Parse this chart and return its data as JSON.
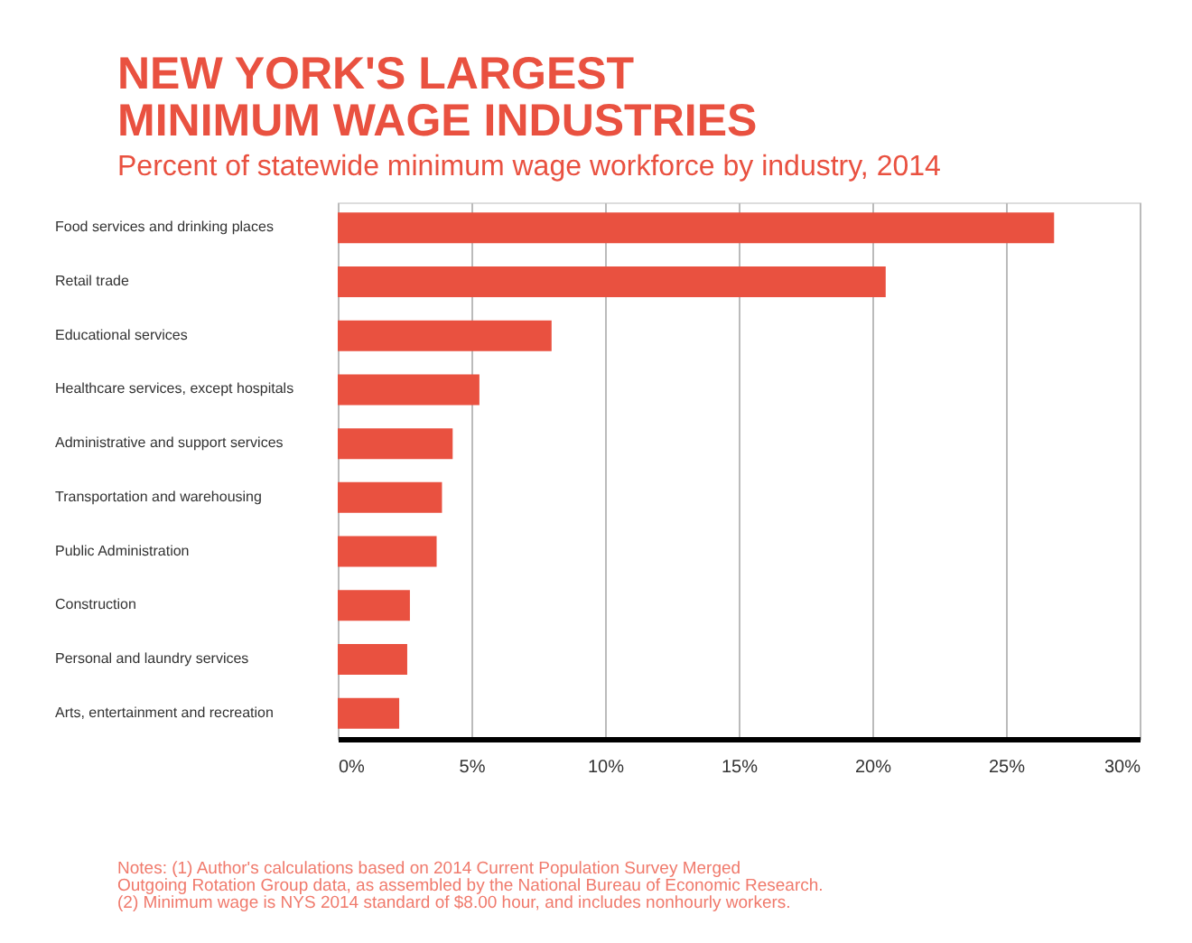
{
  "chart_data": {
    "type": "bar",
    "orientation": "horizontal",
    "title": "NEW YORK'S LARGEST\nMINIMUM WAGE INDUSTRIES",
    "subtitle": "Percent of statewide minimum wage workforce by industry, 2014",
    "categories": [
      "Food services and drinking places",
      "Retail trade",
      "Educational services",
      "Healthcare services, except hospitals",
      "Administrative and support services",
      "Transportation and warehousing",
      "Public Administration",
      "Construction",
      "Personal and laundry services",
      "Arts, entertainment and recreation"
    ],
    "values": [
      26.8,
      20.5,
      8.0,
      5.3,
      4.3,
      3.9,
      3.7,
      2.7,
      2.6,
      2.3
    ],
    "color": "#e95140",
    "xlim": [
      0,
      30
    ],
    "xticks": [
      {
        "value": 0,
        "label": "0%"
      },
      {
        "value": 5,
        "label": "5%"
      },
      {
        "value": 10,
        "label": "10%"
      },
      {
        "value": 15,
        "label": "15%"
      },
      {
        "value": 20,
        "label": "20%"
      },
      {
        "value": 25,
        "label": "25%"
      },
      {
        "value": 30,
        "label": "30%"
      }
    ],
    "grid": "x",
    "annotations": [
      "Notes: (1) Author's calculations based on 2014 Current Population Survey Merged",
      "Outgoing Rotation Group data, as assembled by the National Bureau of Economic Research.",
      "(2) Minimum wage is NYS 2014 standard of $8.00 hour, and includes nonhourly workers."
    ]
  }
}
